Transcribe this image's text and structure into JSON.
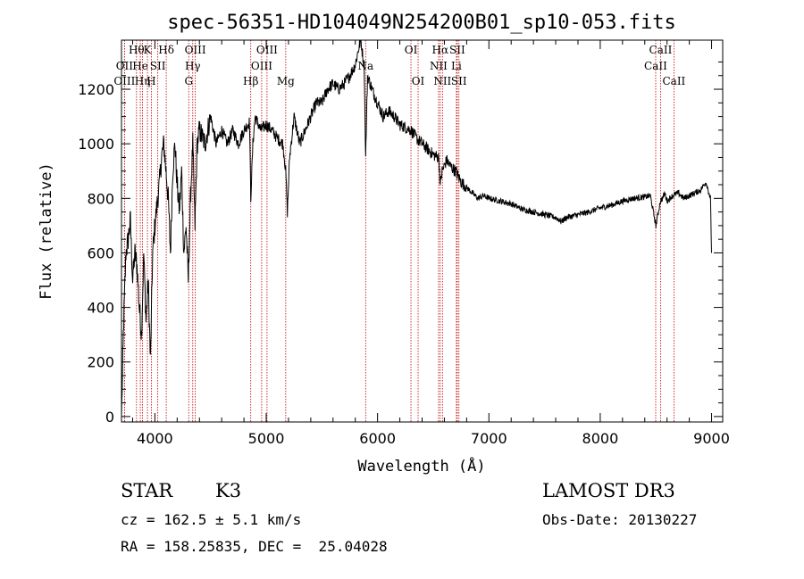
{
  "chart_data": {
    "type": "line",
    "title": "spec-56351-HD104049N254200B01_sp10-053.fits",
    "xlabel": "Wavelength (Å)",
    "ylabel": "Flux (relative)",
    "xlim": [
      3700,
      9100
    ],
    "ylim": [
      -20,
      1380
    ],
    "xticks": [
      4000,
      5000,
      6000,
      7000,
      8000,
      9000
    ],
    "yticks": [
      0,
      200,
      400,
      600,
      800,
      1000,
      1200
    ],
    "grid": false,
    "line_color": "#000000",
    "marker_color": "#c00000",
    "series": [
      {
        "x": [
          3700,
          3720,
          3740,
          3760,
          3780,
          3800,
          3820,
          3840,
          3860,
          3880,
          3900,
          3920,
          3940,
          3960,
          3980,
          4000,
          4020,
          4040,
          4060,
          4080,
          4100,
          4120,
          4140,
          4160,
          4180,
          4200,
          4220,
          4240,
          4260,
          4280,
          4300,
          4320,
          4340,
          4360,
          4380,
          4400,
          4450,
          4500,
          4550,
          4600,
          4650,
          4700,
          4750,
          4800,
          4850,
          4861,
          4880,
          4900,
          4950,
          5000,
          5050,
          5100,
          5150,
          5175,
          5190,
          5210,
          5250,
          5300,
          5350,
          5400,
          5450,
          5500,
          5550,
          5600,
          5650,
          5700,
          5750,
          5800,
          5830,
          5850,
          5880,
          5893,
          5910,
          5950,
          6000,
          6050,
          6100,
          6150,
          6200,
          6250,
          6300,
          6350,
          6400,
          6450,
          6500,
          6550,
          6563,
          6580,
          6620,
          6650,
          6700,
          6750,
          6800,
          6850,
          6900,
          6950,
          7000,
          7100,
          7200,
          7300,
          7400,
          7500,
          7600,
          7650,
          7700,
          7800,
          7900,
          8000,
          8100,
          8200,
          8300,
          8400,
          8450,
          8500,
          8540,
          8560,
          8580,
          8600,
          8650,
          8700,
          8750,
          8800,
          8850,
          8900,
          8950,
          8990,
          9000
        ],
        "y": [
          0,
          350,
          600,
          650,
          720,
          500,
          600,
          550,
          400,
          300,
          600,
          350,
          500,
          200,
          600,
          700,
          780,
          850,
          950,
          1000,
          900,
          800,
          600,
          900,
          1000,
          850,
          750,
          900,
          600,
          700,
          500,
          800,
          1000,
          700,
          1000,
          1050,
          1000,
          1100,
          1000,
          1050,
          1000,
          1050,
          1000,
          1050,
          1080,
          800,
          1000,
          1100,
          1050,
          1070,
          1050,
          1020,
          1000,
          900,
          750,
          950,
          1100,
          1000,
          1050,
          1100,
          1150,
          1150,
          1200,
          1220,
          1200,
          1220,
          1250,
          1290,
          1350,
          1380,
          1280,
          950,
          1250,
          1200,
          1150,
          1100,
          1120,
          1100,
          1070,
          1060,
          1050,
          1020,
          1000,
          980,
          960,
          950,
          850,
          900,
          940,
          920,
          900,
          860,
          840,
          820,
          800,
          810,
          800,
          790,
          780,
          760,
          750,
          740,
          730,
          715,
          730,
          740,
          750,
          765,
          775,
          790,
          800,
          805,
          810,
          700,
          790,
          800,
          820,
          790,
          810,
          820,
          800,
          810,
          820,
          830,
          860,
          800,
          600
        ]
      }
    ],
    "line_markers": [
      {
        "wavelength": 3727,
        "row": 1,
        "text": "OII"
      },
      {
        "wavelength": 3727,
        "row": 2,
        "text": "OIII"
      },
      {
        "wavelength": 3835,
        "row": 0,
        "text": "Hθ"
      },
      {
        "wavelength": 3869,
        "row": 1,
        "text": "He"
      },
      {
        "wavelength": 3889,
        "row": 2,
        "text": "Hη"
      },
      {
        "wavelength": 3933,
        "row": 0,
        "text": "K"
      },
      {
        "wavelength": 3968,
        "row": 2,
        "text": "H"
      },
      {
        "wavelength": 4026,
        "row": 1,
        "text": "SII"
      },
      {
        "wavelength": 4102,
        "row": 0,
        "text": "Hδ"
      },
      {
        "wavelength": 4304,
        "row": 2,
        "text": "G"
      },
      {
        "wavelength": 4340,
        "row": 1,
        "text": "Hγ"
      },
      {
        "wavelength": 4363,
        "row": 0,
        "text": "OIII"
      },
      {
        "wavelength": 4861,
        "row": 2,
        "text": "Hβ"
      },
      {
        "wavelength": 4959,
        "row": 1,
        "text": "OIII"
      },
      {
        "wavelength": 5007,
        "row": 0,
        "text": "OIII"
      },
      {
        "wavelength": 5175,
        "row": 2,
        "text": "Mg"
      },
      {
        "wavelength": 5893,
        "row": 1,
        "text": "Na"
      },
      {
        "wavelength": 6300,
        "row": 0,
        "text": "OI"
      },
      {
        "wavelength": 6364,
        "row": 2,
        "text": "OI"
      },
      {
        "wavelength": 6548,
        "row": 1,
        "text": "NII"
      },
      {
        "wavelength": 6563,
        "row": 0,
        "text": "Hα"
      },
      {
        "wavelength": 6583,
        "row": 2,
        "text": "NII"
      },
      {
        "wavelength": 6708,
        "row": 1,
        "text": "Li"
      },
      {
        "wavelength": 6716,
        "row": 0,
        "text": "SII"
      },
      {
        "wavelength": 6731,
        "row": 2,
        "text": "SII"
      },
      {
        "wavelength": 8498,
        "row": 1,
        "text": "CaII"
      },
      {
        "wavelength": 8542,
        "row": 0,
        "text": "CaII"
      },
      {
        "wavelength": 8662,
        "row": 2,
        "text": "CaII"
      }
    ]
  },
  "info": {
    "object_class": "STAR",
    "subclass": "K3",
    "survey": "LAMOST DR3",
    "cz": "cz = 162.5 ± 5.1 km/s",
    "obs_date": "Obs-Date: 20130227",
    "coords": "RA = 158.25835, DEC =  25.04028"
  }
}
